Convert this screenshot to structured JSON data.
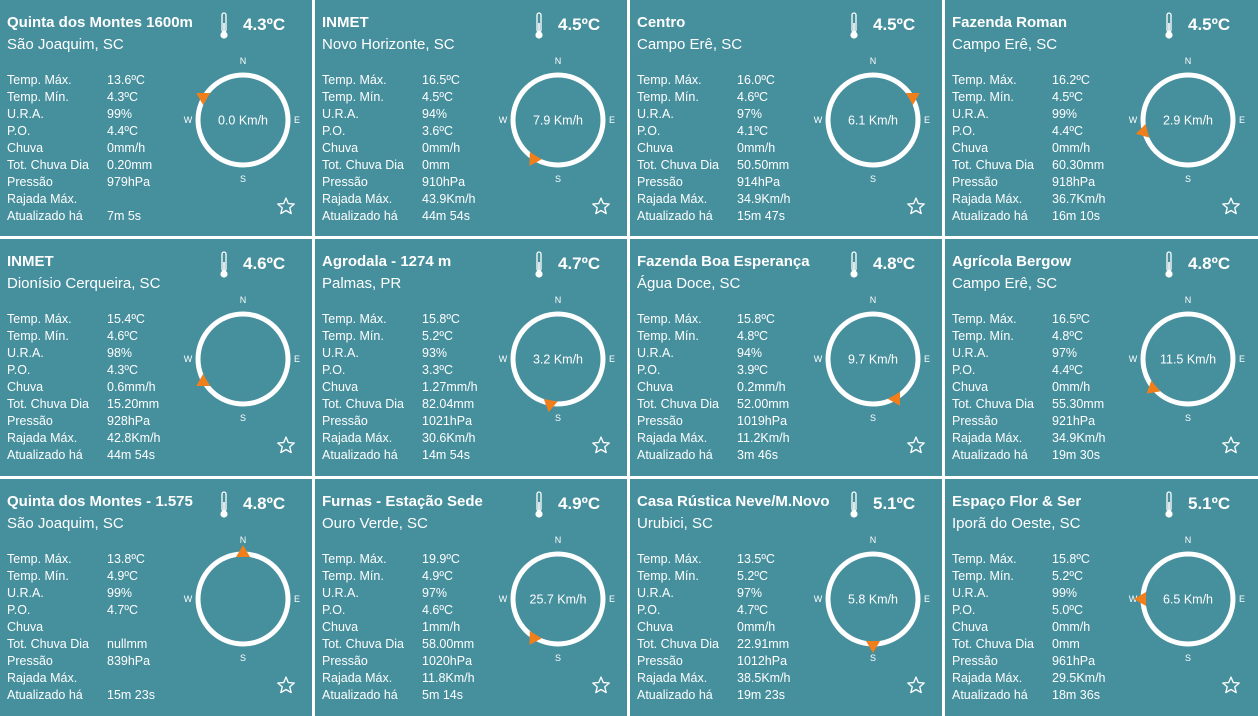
{
  "labels": {
    "temp_max": "Temp. Máx.",
    "temp_min": "Temp. Mín.",
    "ura": "U.R.A.",
    "po": "P.O.",
    "chuva": "Chuva",
    "tot_chuva": "Tot. Chuva Dia",
    "pressao": "Pressão",
    "rajada": "Rajada Máx.",
    "atualizado": "Atualizado há"
  },
  "compass_labels": {
    "n": "N",
    "s": "S",
    "e": "E",
    "w": "W"
  },
  "icons": {
    "thermometer": "thermometer-icon",
    "favorite": "star-outline-icon",
    "wind_direction": "wind-direction-arrow-icon"
  },
  "colors": {
    "card_bg": "#468f9d",
    "arrow": "#f07e1b",
    "text": "#ffffff"
  },
  "stations": [
    {
      "name": "Quinta dos Montes 1600m",
      "city": "São Joaquim, SC",
      "temp": "4.3ºC",
      "temp_max": "13.6ºC",
      "temp_min": "4.3ºC",
      "ura": "99%",
      "po": "4.4ºC",
      "chuva": "0mm/h",
      "tot_chuva": "0.20mm",
      "pressao": "979hPa",
      "rajada": "",
      "atualizado": "7m 5s",
      "wind_speed": "0.0 Km/h",
      "wind_dir_deg": 300
    },
    {
      "name": "INMET",
      "city": "Novo Horizonte, SC",
      "temp": "4.5ºC",
      "temp_max": "16.5ºC",
      "temp_min": "4.5ºC",
      "ura": "94%",
      "po": "3.6ºC",
      "chuva": "0mm/h",
      "tot_chuva": "0mm",
      "pressao": "910hPa",
      "rajada": "43.9Km/h",
      "atualizado": "44m 54s",
      "wind_speed": "7.9 Km/h",
      "wind_dir_deg": 212
    },
    {
      "name": "Centro",
      "city": "Campo Erê, SC",
      "temp": "4.5ºC",
      "temp_max": "16.0ºC",
      "temp_min": "4.6ºC",
      "ura": "97%",
      "po": "4.1ºC",
      "chuva": "0mm/h",
      "tot_chuva": "50.50mm",
      "pressao": "914hPa",
      "rajada": "34.9Km/h",
      "atualizado": "15m 47s",
      "wind_speed": "6.1 Km/h",
      "wind_dir_deg": 60
    },
    {
      "name": "Fazenda Roman",
      "city": "Campo Erê, SC",
      "temp": "4.5ºC",
      "temp_max": "16.2ºC",
      "temp_min": "4.5ºC",
      "ura": "99%",
      "po": "4.4ºC",
      "chuva": "0mm/h",
      "tot_chuva": "60.30mm",
      "pressao": "918hPa",
      "rajada": "36.7Km/h",
      "atualizado": "16m 10s",
      "wind_speed": "2.9 Km/h",
      "wind_dir_deg": 255
    },
    {
      "name": "INMET",
      "city": "Dionísio Cerqueira, SC",
      "temp": "4.6ºC",
      "temp_max": "15.4ºC",
      "temp_min": "4.6ºC",
      "ura": "98%",
      "po": "4.3ºC",
      "chuva": "0.6mm/h",
      "tot_chuva": "15.20mm",
      "pressao": "928hPa",
      "rajada": "42.8Km/h",
      "atualizado": "44m 54s",
      "wind_speed": "",
      "wind_dir_deg": 240
    },
    {
      "name": "Agrodala - 1274 m",
      "city": "Palmas, PR",
      "temp": "4.7ºC",
      "temp_max": "15.8ºC",
      "temp_min": "5.2ºC",
      "ura": "93%",
      "po": "3.3ºC",
      "chuva": "1.27mm/h",
      "tot_chuva": "82.04mm",
      "pressao": "1021hPa",
      "rajada": "30.6Km/h",
      "atualizado": "14m 54s",
      "wind_speed": "3.2 Km/h",
      "wind_dir_deg": 190
    },
    {
      "name": "Fazenda Boa Esperança",
      "city": "Água Doce, SC",
      "temp": "4.8ºC",
      "temp_max": "15.8ºC",
      "temp_min": "4.8ºC",
      "ura": "94%",
      "po": "3.9ºC",
      "chuva": "0.2mm/h",
      "tot_chuva": "52.00mm",
      "pressao": "1019hPa",
      "rajada": "11.2Km/h",
      "atualizado": "3m 46s",
      "wind_speed": "9.7 Km/h",
      "wind_dir_deg": 150
    },
    {
      "name": "Agrícola Bergow",
      "city": "Campo Erê, SC",
      "temp": "4.8ºC",
      "temp_max": "16.5ºC",
      "temp_min": "4.8ºC",
      "ura": "97%",
      "po": "4.4ºC",
      "chuva": "0mm/h",
      "tot_chuva": "55.30mm",
      "pressao": "921hPa",
      "rajada": "34.9Km/h",
      "atualizado": "19m 30s",
      "wind_speed": "11.5 Km/h",
      "wind_dir_deg": 230
    },
    {
      "name": "Quinta dos Montes - 1.575",
      "city": "São Joaquim, SC",
      "temp": "4.8ºC",
      "temp_max": "13.8ºC",
      "temp_min": "4.9ºC",
      "ura": "99%",
      "po": "4.7ºC",
      "chuva": "",
      "tot_chuva": "nullmm",
      "pressao": "839hPa",
      "rajada": "",
      "atualizado": "15m 23s",
      "wind_speed": "",
      "wind_dir_deg": 0
    },
    {
      "name": "Furnas - Estação Sede",
      "city": "Ouro Verde, SC",
      "temp": "4.9ºC",
      "temp_max": "19.9ºC",
      "temp_min": "4.9ºC",
      "ura": "97%",
      "po": "4.6ºC",
      "chuva": "1mm/h",
      "tot_chuva": "58.00mm",
      "pressao": "1020hPa",
      "rajada": "11.8Km/h",
      "atualizado": "5m 14s",
      "wind_speed": "25.7 Km/h",
      "wind_dir_deg": 212
    },
    {
      "name": "Casa Rústica Neve/M.Novo",
      "city": "Urubici, SC",
      "temp": "5.1ºC",
      "temp_max": "13.5ºC",
      "temp_min": "5.2ºC",
      "ura": "97%",
      "po": "4.7ºC",
      "chuva": "0mm/h",
      "tot_chuva": "22.91mm",
      "pressao": "1012hPa",
      "rajada": "38.5Km/h",
      "atualizado": "19m 23s",
      "wind_speed": "5.8 Km/h",
      "wind_dir_deg": 180
    },
    {
      "name": "Espaço Flor & Ser",
      "city": "Iporã do Oeste, SC",
      "temp": "5.1ºC",
      "temp_max": "15.8ºC",
      "temp_min": "5.2ºC",
      "ura": "99%",
      "po": "5.0ºC",
      "chuva": "0mm/h",
      "tot_chuva": "0mm",
      "pressao": "961hPa",
      "rajada": "29.5Km/h",
      "atualizado": "18m 36s",
      "wind_speed": "6.5 Km/h",
      "wind_dir_deg": 270
    }
  ]
}
